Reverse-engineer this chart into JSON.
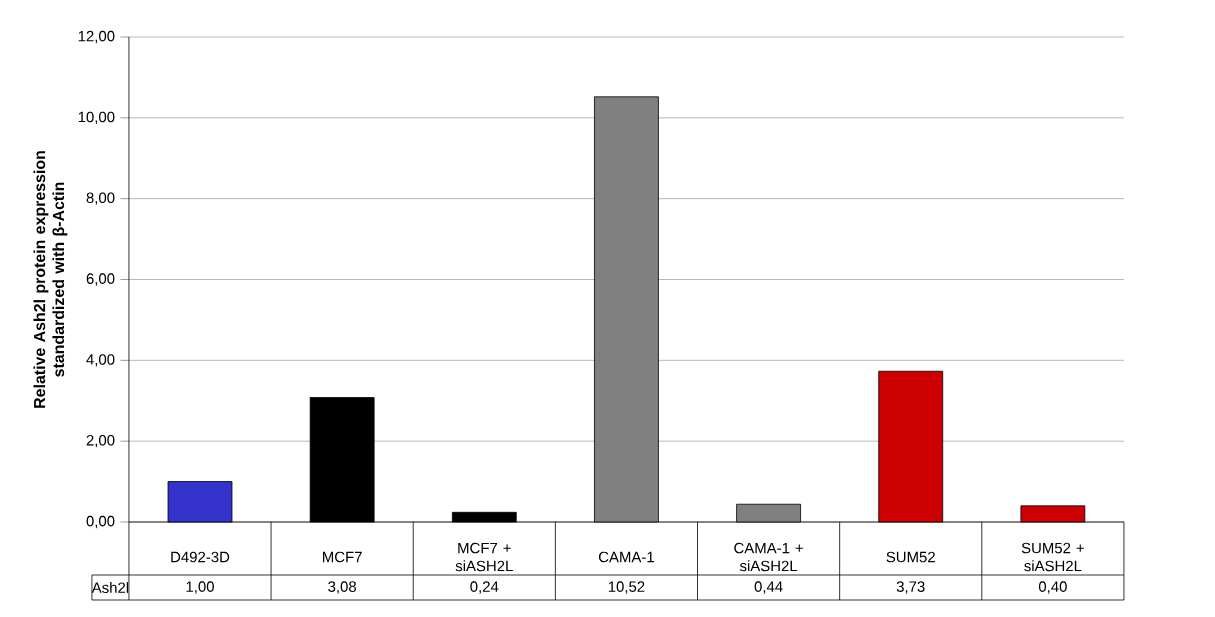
{
  "chart_data": {
    "type": "bar",
    "ylabel": "Relative Ash2l protein expression standardized with β-Actin",
    "categories": [
      "D492-3D",
      "MCF7",
      "MCF7 + siASH2L",
      "CAMA-1",
      "CAMA-1 + siASH2L",
      "SUM52",
      "SUM52 + siASH2L"
    ],
    "series": [
      {
        "name": "Ash2l",
        "values": [
          1.0,
          3.08,
          0.24,
          10.52,
          0.44,
          3.73,
          0.4
        ],
        "colors": [
          "#3333cc",
          "#000000",
          "#000000",
          "#808080",
          "#808080",
          "#cc0000",
          "#cc0000"
        ],
        "value_labels": [
          "1,00",
          "3,08",
          "0,24",
          "10,52",
          "0,44",
          "3,73",
          "0,40"
        ]
      }
    ],
    "ylim": [
      0,
      12
    ],
    "yticks": [
      {
        "value": 0,
        "label": "0,00"
      },
      {
        "value": 2,
        "label": "2,00"
      },
      {
        "value": 4,
        "label": "4,00"
      },
      {
        "value": 6,
        "label": "6,00"
      },
      {
        "value": 8,
        "label": "8,00"
      },
      {
        "value": 10,
        "label": "10,00"
      },
      {
        "value": 12,
        "label": "12,00"
      }
    ],
    "grid": "y",
    "legend": "bottom left"
  }
}
